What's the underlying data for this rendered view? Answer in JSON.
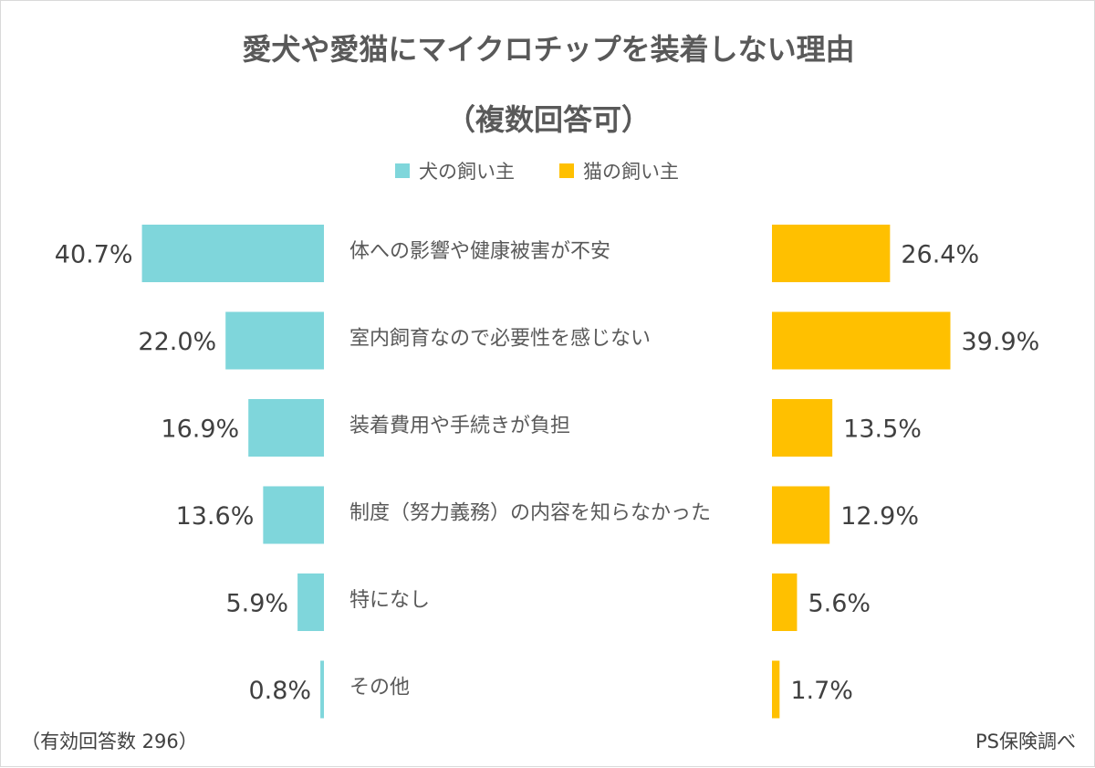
{
  "chart_data": {
    "type": "bar",
    "title": "愛犬や愛猫にマイクロチップを装着しない理由",
    "subtitle": "（複数回答可）",
    "legend_placement": "top-center",
    "categories": [
      "体への影響や健康被害が不安",
      "室内飼育なので必要性を感じない",
      "装着費用や手続きが負担",
      "制度（努力義務）の内容を知らなかった",
      "特になし",
      "その他"
    ],
    "series": [
      {
        "name": "犬の飼い主",
        "color": "#7fd6db",
        "values": [
          40.7,
          22.0,
          16.9,
          13.6,
          5.9,
          0.8
        ],
        "labels": [
          "40.7%",
          "22.0%",
          "16.9%",
          "13.6%",
          "5.9%",
          "0.8%"
        ]
      },
      {
        "name": "猫の飼い主",
        "color": "#ffc000",
        "values": [
          26.4,
          39.9,
          13.5,
          12.9,
          5.6,
          1.7
        ],
        "labels": [
          "26.4%",
          "39.9%",
          "13.5%",
          "12.9%",
          "5.6%",
          "1.7%"
        ]
      }
    ],
    "unit": "%",
    "grid": false
  },
  "footer": {
    "note": "（有効回答数 296）",
    "source": "PS保険調べ"
  }
}
